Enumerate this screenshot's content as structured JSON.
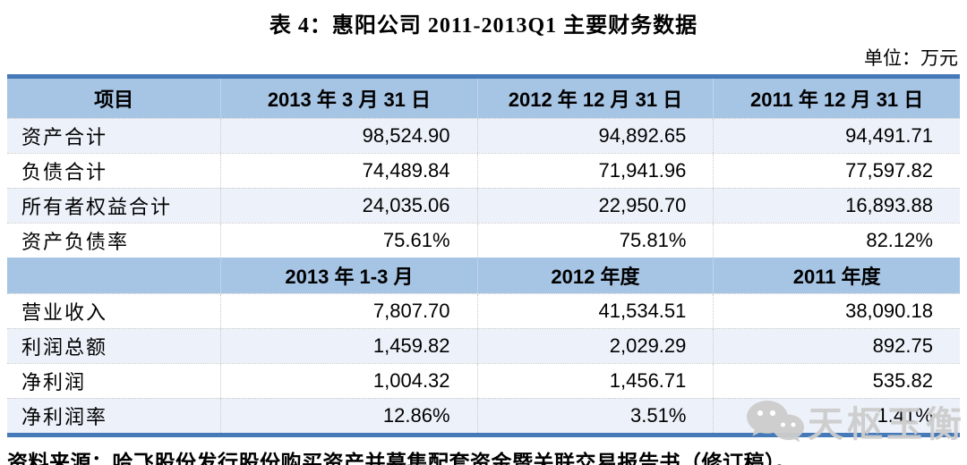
{
  "title": "表 4：惠阳公司 2011-2013Q1 主要财务数据",
  "unit_label": "单位：万元",
  "colors": {
    "header_fill": "#a6c4e4",
    "accent_border": "#4579b8",
    "shaded_row": "#edf2fa",
    "grid_dotted": "#c9c9c9",
    "watermark_gray": "#cdcdcd"
  },
  "table": {
    "sections": [
      {
        "header": [
          "项目",
          "2013 年 3 月 31 日",
          "2012 年 12 月 31 日",
          "2011 年 12 月 31 日"
        ],
        "rows": [
          {
            "label": "资产合计",
            "values": [
              "98,524.90",
              "94,892.65",
              "94,491.71"
            ],
            "shaded": true
          },
          {
            "label": "负债合计",
            "values": [
              "74,489.84",
              "71,941.96",
              "77,597.82"
            ],
            "shaded": false
          },
          {
            "label": "所有者权益合计",
            "values": [
              "24,035.06",
              "22,950.70",
              "16,893.88"
            ],
            "shaded": true
          },
          {
            "label": "资产负债率",
            "values": [
              "75.61%",
              "75.81%",
              "82.12%"
            ],
            "shaded": false
          }
        ]
      },
      {
        "header": [
          "",
          "2013 年 1-3 月",
          "2012 年度",
          "2011 年度"
        ],
        "rows": [
          {
            "label": "营业收入",
            "values": [
              "7,807.70",
              "41,534.51",
              "38,090.18"
            ],
            "shaded": false
          },
          {
            "label": "利润总额",
            "values": [
              "1,459.82",
              "2,029.29",
              "892.75"
            ],
            "shaded": true
          },
          {
            "label": "净利润",
            "values": [
              "1,004.32",
              "1,456.71",
              "535.82"
            ],
            "shaded": false
          },
          {
            "label": "净利润率",
            "values": [
              "12.86%",
              "3.51%",
              "1.41%"
            ],
            "shaded": true
          }
        ]
      }
    ]
  },
  "source": "资料来源：哈飞股份发行股份购买资产并募集配套资金暨关联交易报告书（修订稿）。",
  "watermark": {
    "icon": "wechat-icon",
    "text": "天枢玉衡"
  }
}
